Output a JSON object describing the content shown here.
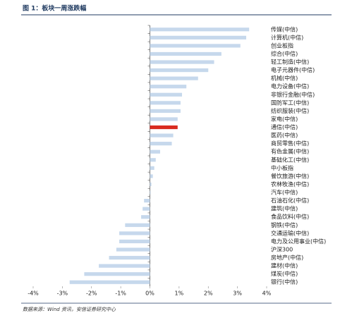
{
  "chart_data": {
    "type": "hbar",
    "title": "图 1：板块一周涨跌幅",
    "source": "数据来源：Wind 资讯，安信证券研究中心",
    "categories": [
      "传媒(中信)",
      "计算机(中信)",
      "创业板指",
      "综合(中信)",
      "轻工制造(中信)",
      "电子元器件(中信)",
      "机械(中信)",
      "电力设备(中信)",
      "非银行金融(中信)",
      "国防军工(中信)",
      "纺织服装(中信)",
      "家电(中信)",
      "通信(中信)",
      "医药(中信)",
      "商贸零售(中信)",
      "有色金属(中信)",
      "基础化工(中信)",
      "中小板指",
      "餐饮旅游(中信)",
      "农林牧渔(中信)",
      "汽车(中信)",
      "石油石化(中信)",
      "建筑(中信)",
      "食品饮料(中信)",
      "钢铁(中信)",
      "交通运输(中信)",
      "电力及公用事业(中信)",
      "沪深300",
      "房地产(中信)",
      "建材(中信)",
      "煤炭(中信)",
      "银行(中信)"
    ],
    "values": [
      3.4,
      3.3,
      3.1,
      2.45,
      2.2,
      2.0,
      1.65,
      1.25,
      1.1,
      1.05,
      1.05,
      0.95,
      0.95,
      0.8,
      0.75,
      0.35,
      0.2,
      0.15,
      0.1,
      0.05,
      0.02,
      -0.2,
      -0.25,
      -0.3,
      -0.85,
      -1.05,
      -1.05,
      -1.15,
      -1.4,
      -1.75,
      -2.25,
      -2.75
    ],
    "colors": [
      "#c6d8ec",
      "#c6d8ec",
      "#c6d8ec",
      "#c6d8ec",
      "#c6d8ec",
      "#c6d8ec",
      "#c6d8ec",
      "#c6d8ec",
      "#c6d8ec",
      "#c6d8ec",
      "#c6d8ec",
      "#c6d8ec",
      "#d92b20",
      "#c6d8ec",
      "#c6d8ec",
      "#c6d8ec",
      "#c6d8ec",
      "#c6d8ec",
      "#c6d8ec",
      "#c6d8ec",
      "#c6d8ec",
      "#c6d8ec",
      "#c6d8ec",
      "#c6d8ec",
      "#c6d8ec",
      "#c6d8ec",
      "#c6d8ec",
      "#c6d8ec",
      "#c6d8ec",
      "#c6d8ec",
      "#c6d8ec",
      "#c6d8ec"
    ],
    "xlim": [
      -4,
      4
    ],
    "xticks": [
      {
        "value": -4,
        "label": "-4%"
      },
      {
        "value": -3,
        "label": "-3%"
      },
      {
        "value": -2,
        "label": "-2%"
      },
      {
        "value": -1,
        "label": "-1%"
      },
      {
        "value": 0,
        "label": "0%"
      },
      {
        "value": 1,
        "label": "1%"
      },
      {
        "value": 2,
        "label": "2%"
      },
      {
        "value": 3,
        "label": "3%"
      },
      {
        "value": 4,
        "label": "4%"
      }
    ]
  }
}
